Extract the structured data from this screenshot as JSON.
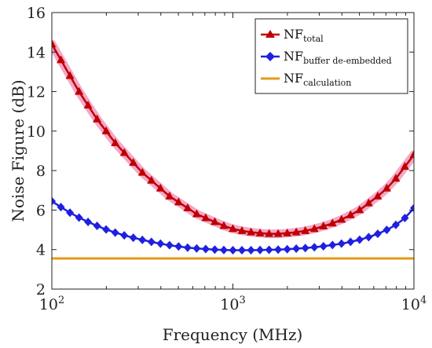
{
  "chart_data": {
    "type": "line",
    "title": "",
    "xlabel": "Frequency (MHz)",
    "ylabel": "Noise Figure (dB)",
    "xscale": "log",
    "xlim": [
      100,
      10000
    ],
    "ylim": [
      2,
      16
    ],
    "yticks": [
      2,
      4,
      6,
      8,
      10,
      12,
      14,
      16
    ],
    "xticks": [
      {
        "base": "10",
        "exp": "2",
        "value": 100
      },
      {
        "base": "10",
        "exp": "3",
        "value": 1000
      },
      {
        "base": "10",
        "exp": "4",
        "value": 10000
      }
    ],
    "grid": false,
    "legend": {
      "placement": "top-right",
      "entries": [
        {
          "main": "NF",
          "sub": "total"
        },
        {
          "main": "NF",
          "sub": "buffer de-embedded"
        },
        {
          "main": "NF",
          "sub": "calculation"
        }
      ]
    },
    "series": [
      {
        "label_main": "NF",
        "label_sub": "total",
        "color": "#c00000",
        "glow": "#f4a8c8",
        "marker": "triangle",
        "x": [
          100.0,
          112.2,
          125.9,
          141.3,
          158.5,
          177.8,
          199.5,
          223.9,
          251.2,
          281.8,
          316.2,
          354.8,
          398.1,
          446.7,
          501.2,
          562.3,
          631.0,
          707.9,
          794.3,
          891.3,
          1000.0,
          1122.0,
          1258.9,
          1412.5,
          1584.9,
          1778.3,
          1995.3,
          2238.7,
          2511.9,
          2818.4,
          3162.3,
          3548.1,
          3981.1,
          4466.8,
          5011.9,
          5623.4,
          6309.6,
          7079.5,
          7943.3,
          8912.5,
          10000.0
        ],
        "y": [
          14.4,
          13.6,
          12.8,
          12.0,
          11.3,
          10.6,
          10.0,
          9.4,
          8.9,
          8.4,
          7.9,
          7.5,
          7.1,
          6.7,
          6.4,
          6.1,
          5.8,
          5.6,
          5.4,
          5.2,
          5.05,
          4.95,
          4.88,
          4.83,
          4.8,
          4.8,
          4.83,
          4.88,
          4.95,
          5.05,
          5.18,
          5.33,
          5.52,
          5.75,
          6.0,
          6.35,
          6.7,
          7.1,
          7.6,
          8.2,
          8.8
        ]
      },
      {
        "label_main": "NF",
        "label_sub": "buffer de-embedded",
        "color": "#1f1fe0",
        "marker": "diamond",
        "x": [
          100.0,
          112.2,
          125.9,
          141.3,
          158.5,
          177.8,
          199.5,
          223.9,
          251.2,
          281.8,
          316.2,
          354.8,
          398.1,
          446.7,
          501.2,
          562.3,
          631.0,
          707.9,
          794.3,
          891.3,
          1000.0,
          1122.0,
          1258.9,
          1412.5,
          1584.9,
          1778.3,
          1995.3,
          2238.7,
          2511.9,
          2818.4,
          3162.3,
          3548.1,
          3981.1,
          4466.8,
          5011.9,
          5623.4,
          6309.6,
          7079.5,
          7943.3,
          8912.5,
          10000.0
        ],
        "y": [
          6.45,
          6.15,
          5.87,
          5.62,
          5.4,
          5.2,
          5.02,
          4.86,
          4.72,
          4.6,
          4.49,
          4.39,
          4.3,
          4.22,
          4.16,
          4.1,
          4.06,
          4.03,
          4.0,
          3.98,
          3.97,
          3.97,
          3.97,
          3.98,
          3.99,
          4.0,
          4.02,
          4.05,
          4.08,
          4.12,
          4.17,
          4.23,
          4.3,
          4.39,
          4.5,
          4.63,
          4.8,
          5.0,
          5.25,
          5.6,
          6.1
        ]
      },
      {
        "label_main": "NF",
        "label_sub": "calculation",
        "color": "#e59a17",
        "marker": "none",
        "x": [
          100,
          10000
        ],
        "y": [
          3.55,
          3.55
        ]
      }
    ]
  }
}
